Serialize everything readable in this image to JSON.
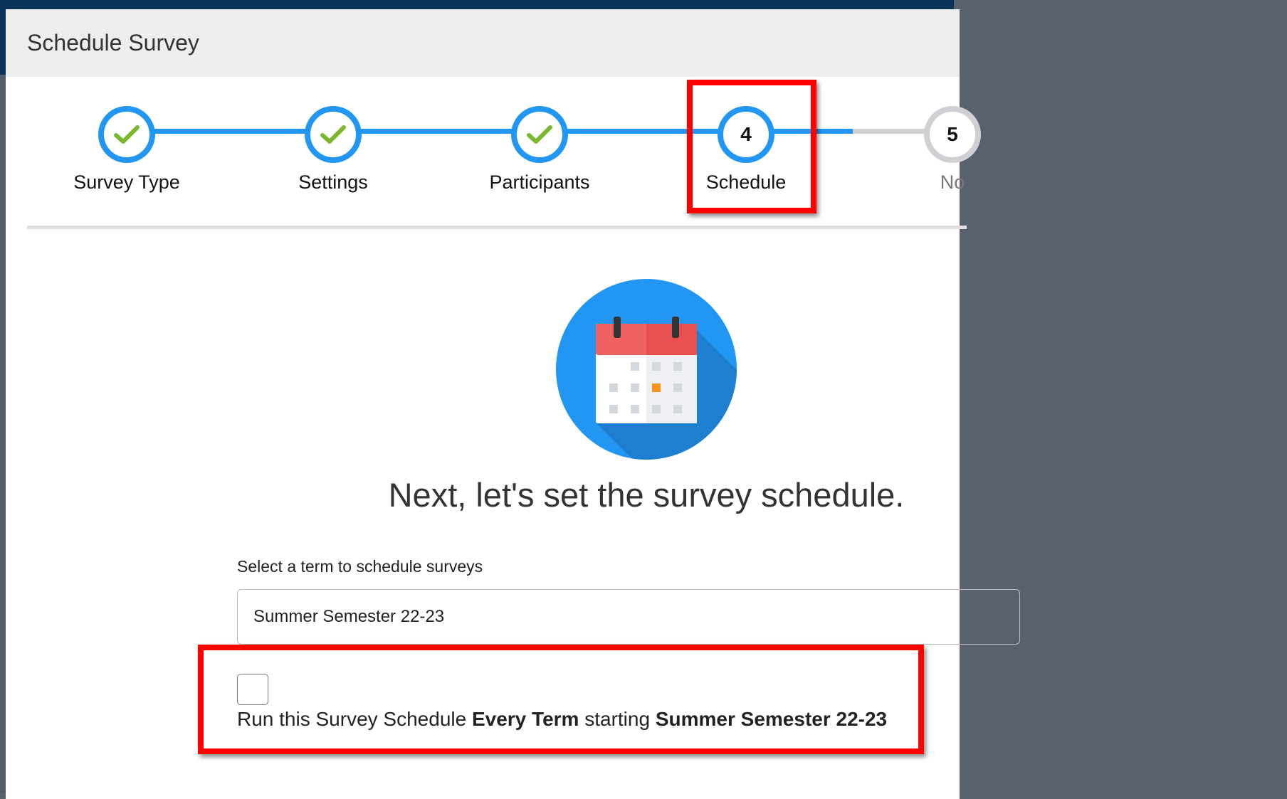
{
  "modal": {
    "title": "Schedule Survey"
  },
  "steps": [
    {
      "label": "Survey Type",
      "state": "complete",
      "icon": "check-icon"
    },
    {
      "label": "Settings",
      "state": "complete",
      "icon": "check-icon"
    },
    {
      "label": "Participants",
      "state": "complete",
      "icon": "check-icon"
    },
    {
      "label": "Schedule",
      "number": "4",
      "state": "active"
    },
    {
      "label": "No",
      "number": "5",
      "state": "todo"
    }
  ],
  "main": {
    "illustration": "calendar-icon",
    "heading": "Next, let's set the survey schedule.",
    "term_label": "Select a term to schedule surveys",
    "term_value": "Summer Semester 22-23",
    "repeat": {
      "checked": false,
      "text1": "Run this Survey Schedule ",
      "bold1": "Every Term",
      "text2": " starting ",
      "bold2": "Summer Semester 22-23"
    }
  },
  "colors": {
    "accent": "#2196f3",
    "check": "#7cb82f",
    "highlight": "#ff0000",
    "inactive": "#d0d0d4"
  }
}
